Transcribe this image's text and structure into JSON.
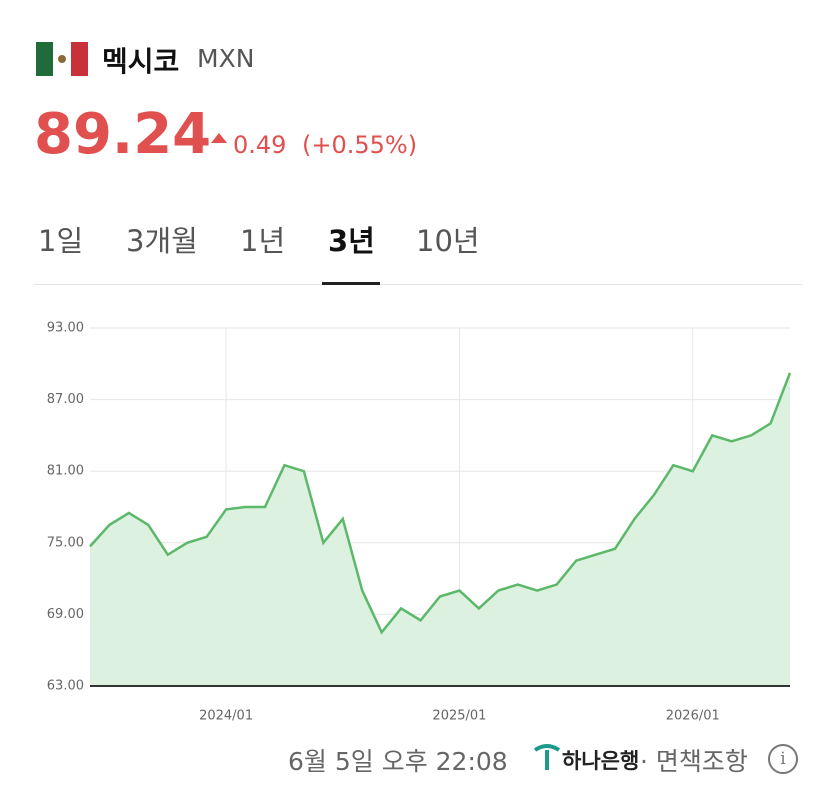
{
  "header": {
    "country": "멕시코",
    "code": "MXN",
    "price": "89.24",
    "change": "0.49",
    "change_pct": "(+0.55%)"
  },
  "tabs": [
    "1일",
    "3개월",
    "1년",
    "3년",
    "10년"
  ],
  "active_tab": 3,
  "chart_data": {
    "type": "area",
    "x": [
      "2023/06",
      "2023/07",
      "2023/08",
      "2023/09",
      "2023/10",
      "2023/11",
      "2023/12",
      "2024/01",
      "2024/02",
      "2024/03",
      "2024/04",
      "2024/05",
      "2024/06",
      "2024/07",
      "2024/08",
      "2024/09",
      "2024/10",
      "2024/11",
      "2024/12",
      "2025/01",
      "2025/02",
      "2025/03",
      "2025/04",
      "2025/05",
      "2025/06",
      "2025/07",
      "2025/08",
      "2025/09",
      "2025/10",
      "2025/11",
      "2025/12",
      "2026/01",
      "2026/02",
      "2026/03",
      "2026/04",
      "2026/05",
      "2026/06"
    ],
    "values": [
      74.7,
      76.5,
      77.5,
      76.5,
      74.0,
      75.0,
      75.5,
      77.8,
      78.0,
      78.0,
      81.5,
      81.0,
      75.0,
      77.0,
      71.0,
      67.5,
      69.5,
      68.5,
      70.5,
      71.0,
      69.5,
      71.0,
      71.5,
      71.0,
      71.5,
      73.5,
      74.0,
      74.5,
      77.0,
      79.0,
      81.5,
      81.0,
      84.0,
      83.5,
      84.0,
      85.0,
      89.24
    ],
    "color": "#5cb86a",
    "fill": "#dcf1e0",
    "ylim": [
      63,
      93
    ],
    "yticks": [
      {
        "value": 63,
        "label": "63.00"
      },
      {
        "value": 69,
        "label": "69.00"
      },
      {
        "value": 75,
        "label": "75.00"
      },
      {
        "value": 81,
        "label": "81.00"
      },
      {
        "value": 87,
        "label": "87.00"
      },
      {
        "value": 93,
        "label": "93.00"
      }
    ],
    "xticks": [
      "2024/01",
      "2025/01",
      "2026/01"
    ],
    "grid": true
  },
  "footer": {
    "time": "6월 5일 오후 22:08",
    "bank": "하나은행",
    "disclaimer": "· 면책조항"
  }
}
